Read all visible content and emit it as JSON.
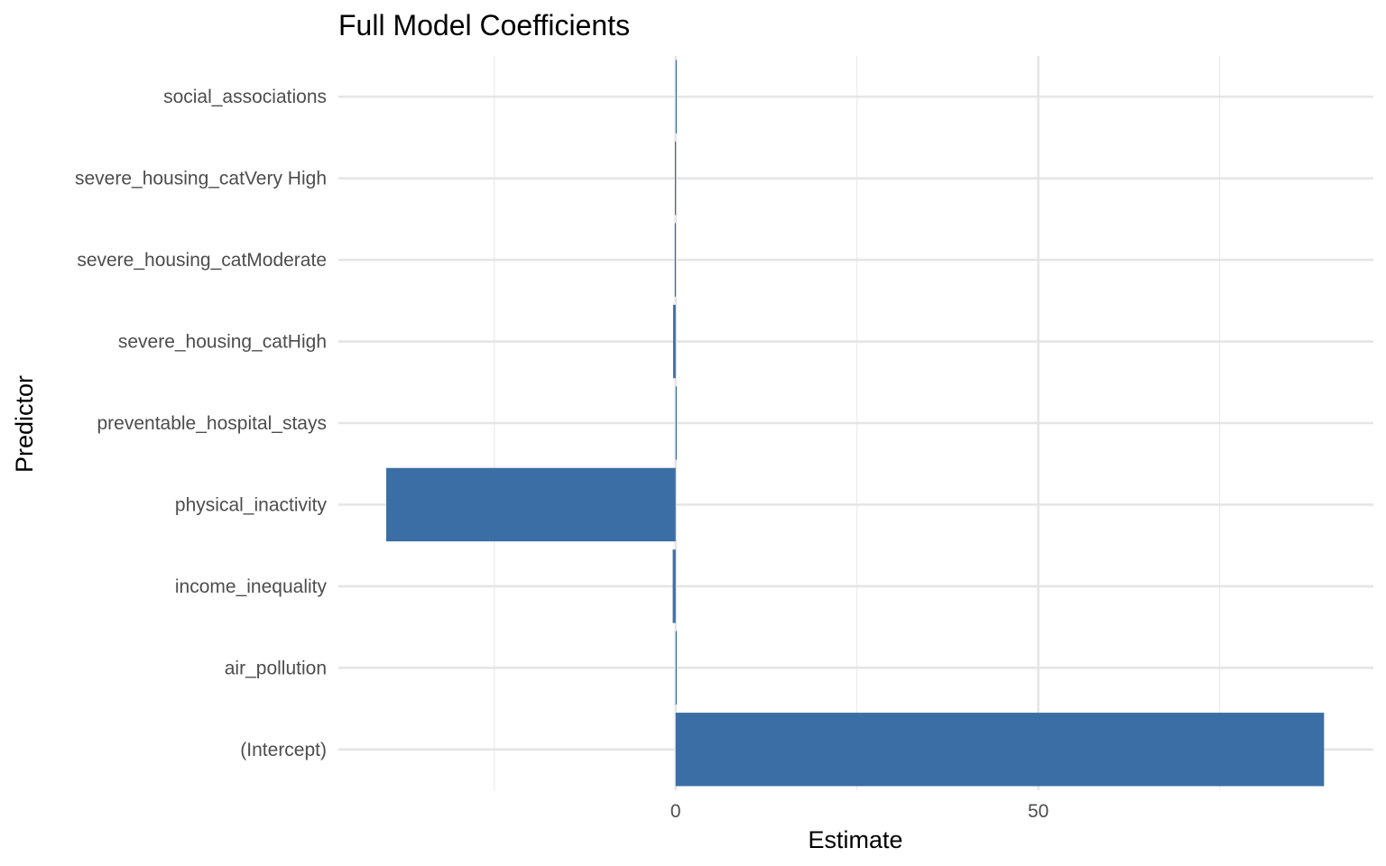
{
  "chart_data": {
    "type": "bar",
    "orientation": "horizontal",
    "title": "Full Model Coefficients",
    "xlabel": "Estimate",
    "ylabel": "Predictor",
    "categories": [
      "(Intercept)",
      "air_pollution",
      "income_inequality",
      "physical_inactivity",
      "preventable_hospital_stays",
      "severe_housing_catHigh",
      "severe_housing_catModerate",
      "severe_housing_catVery High",
      "social_associations"
    ],
    "values": [
      89.4,
      0.02,
      -0.4,
      -39.9,
      0.002,
      -0.35,
      -0.12,
      -0.1,
      0.01
    ],
    "xlim": [
      -46.5,
      96.2
    ],
    "x_ticks": [
      0,
      50
    ],
    "x_tick_labels": [
      "0",
      "50"
    ],
    "bar_color": "#3a6ea5",
    "grid": true,
    "legend": "none"
  }
}
